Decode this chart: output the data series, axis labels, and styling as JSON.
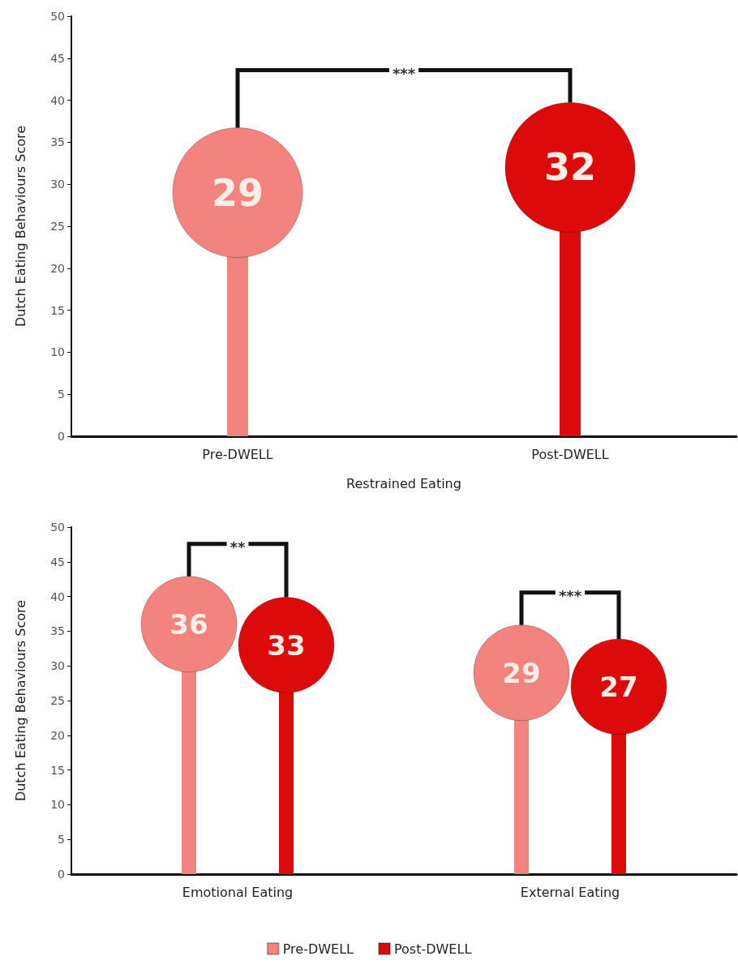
{
  "chart_data": [
    {
      "type": "lollipop",
      "categories": [
        "Pre-DWELL",
        "Post-DWELL"
      ],
      "values": [
        29,
        32
      ],
      "colors": [
        "#f2837e",
        "#dc0a0a"
      ],
      "data_labels": true,
      "xlabel": "Restrained Eating",
      "ylabel": "Dutch Eating Behaviours Score",
      "ylim": [
        0,
        50
      ],
      "yticks": [
        0,
        5,
        10,
        15,
        20,
        25,
        30,
        35,
        40,
        45,
        50
      ],
      "annotations": [
        "***"
      ]
    },
    {
      "type": "lollipop",
      "categories": [
        "Emotional Eating",
        "External Eating"
      ],
      "series": [
        {
          "name": "Pre-DWELL",
          "color": "#f2837e",
          "values": [
            36,
            29
          ]
        },
        {
          "name": "Post-DWELL",
          "color": "#dc0a0a",
          "values": [
            33,
            27
          ]
        }
      ],
      "data_labels": true,
      "ylabel": "Dutch Eating Behaviours Score",
      "ylim": [
        0,
        50
      ],
      "yticks": [
        0,
        5,
        10,
        15,
        20,
        25,
        30,
        35,
        40,
        45,
        50
      ],
      "legend": "bottom",
      "annotations": [
        "**",
        "***"
      ]
    }
  ]
}
